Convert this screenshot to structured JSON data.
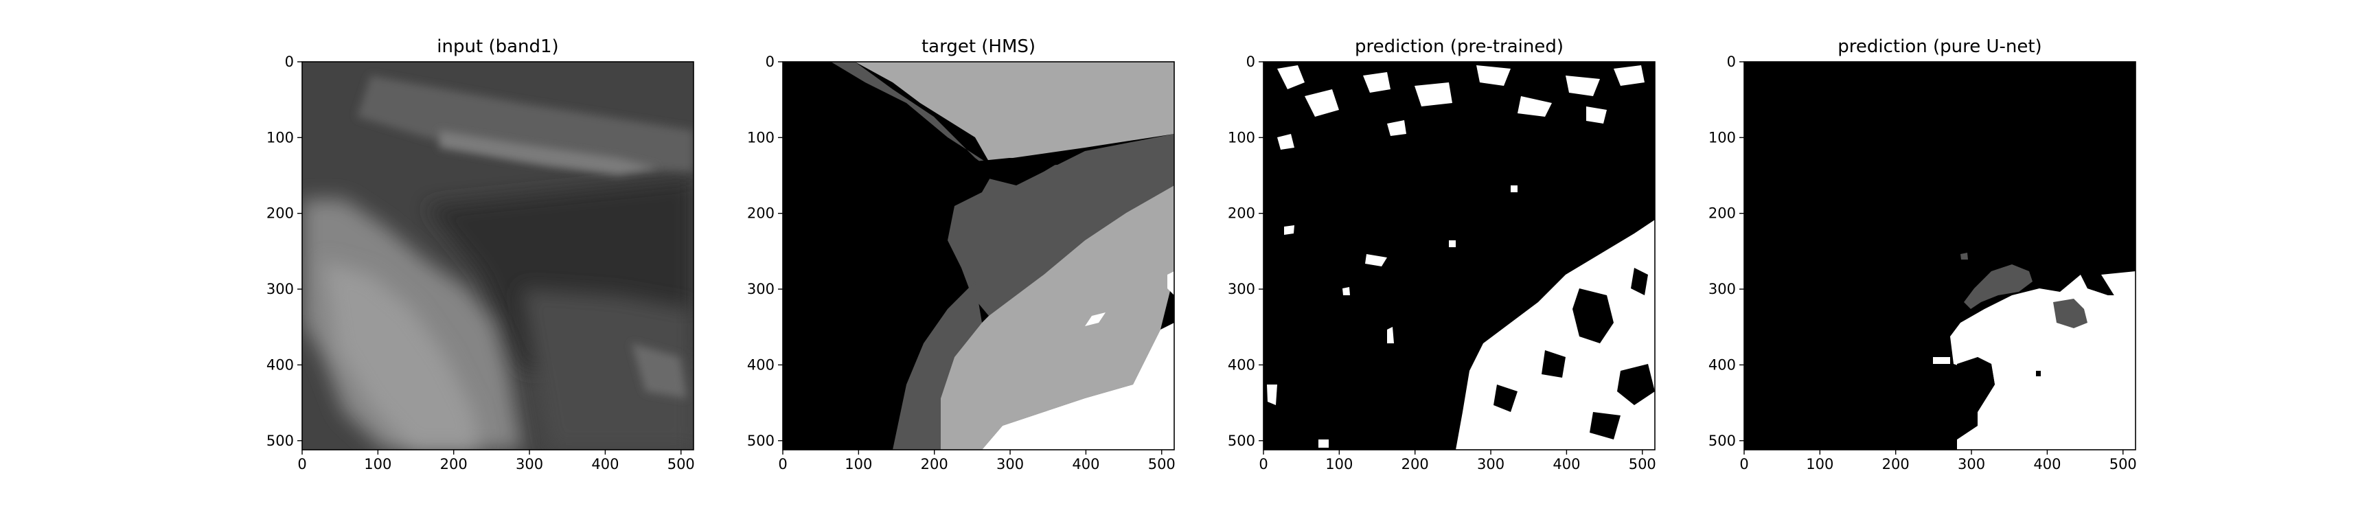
{
  "panels": [
    {
      "title": "input (band1)"
    },
    {
      "title": "target (HMS)"
    },
    {
      "title": "prediction (pre-trained)"
    },
    {
      "title": "prediction (pure U-net)"
    }
  ],
  "axis_ticks": {
    "x": [
      "0",
      "100",
      "200",
      "300",
      "400",
      "500"
    ],
    "y": [
      "0",
      "100",
      "200",
      "300",
      "400",
      "500"
    ]
  },
  "colors": {
    "frame": "#000000",
    "black": "#000000",
    "dark_gray": "#555555",
    "light_gray": "#a8a8a8",
    "white": "#ffffff",
    "input_base": "#4a4a4a",
    "input_dark": "#2c2c2c",
    "input_light": "#7a7a7a"
  }
}
